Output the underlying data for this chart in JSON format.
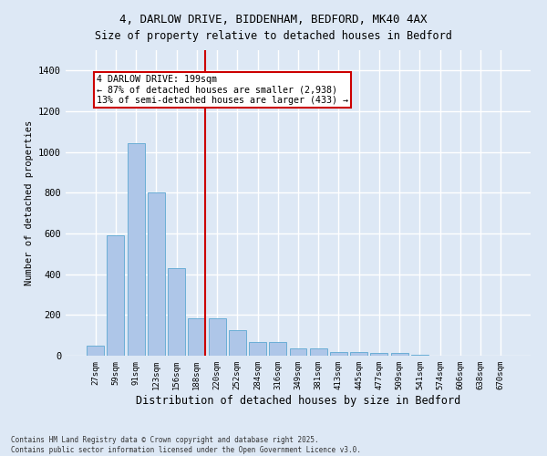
{
  "title_line1": "4, DARLOW DRIVE, BIDDENHAM, BEDFORD, MK40 4AX",
  "title_line2": "Size of property relative to detached houses in Bedford",
  "xlabel": "Distribution of detached houses by size in Bedford",
  "ylabel": "Number of detached properties",
  "categories": [
    "27sqm",
    "59sqm",
    "91sqm",
    "123sqm",
    "156sqm",
    "188sqm",
    "220sqm",
    "252sqm",
    "284sqm",
    "316sqm",
    "349sqm",
    "381sqm",
    "413sqm",
    "445sqm",
    "477sqm",
    "509sqm",
    "541sqm",
    "574sqm",
    "606sqm",
    "638sqm",
    "670sqm"
  ],
  "values": [
    50,
    590,
    1045,
    800,
    430,
    185,
    185,
    125,
    65,
    65,
    35,
    35,
    20,
    20,
    12,
    12,
    6,
    0,
    0,
    0,
    0
  ],
  "bar_color": "#aec6e8",
  "bar_edge_color": "#6baed6",
  "background_color": "#dde8f5",
  "grid_color": "#ffffff",
  "vline_x": 5.42,
  "vline_color": "#cc0000",
  "annotation_text": "4 DARLOW DRIVE: 199sqm\n← 87% of detached houses are smaller (2,938)\n13% of semi-detached houses are larger (433) →",
  "ylim": [
    0,
    1500
  ],
  "yticks": [
    0,
    200,
    400,
    600,
    800,
    1000,
    1200,
    1400
  ],
  "footer_line1": "Contains HM Land Registry data © Crown copyright and database right 2025.",
  "footer_line2": "Contains public sector information licensed under the Open Government Licence v3.0."
}
